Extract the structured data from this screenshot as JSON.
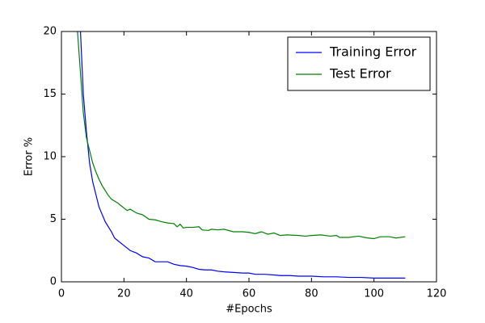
{
  "chart_data": {
    "type": "line",
    "xlabel": "#Epochs",
    "ylabel": "Error %",
    "xlim": [
      0,
      120
    ],
    "xticks": [
      0,
      20,
      40,
      60,
      80,
      100,
      120
    ],
    "ylim": [
      0,
      20
    ],
    "yticks": [
      0,
      5,
      10,
      15,
      20
    ],
    "legend": "upper right",
    "series": [
      {
        "name": "Training Error",
        "color": "#0000ff",
        "x": [
          6,
          7,
          8,
          9,
          10,
          11,
          12,
          13,
          14,
          15,
          16,
          17,
          18,
          20,
          22,
          24,
          26,
          28,
          30,
          32,
          34,
          36,
          38,
          40,
          42,
          44,
          46,
          48,
          50,
          52,
          55,
          58,
          60,
          62,
          65,
          68,
          70,
          73,
          76,
          80,
          84,
          88,
          92,
          96,
          100,
          104,
          108,
          110
        ],
        "values": [
          20.5,
          15,
          12,
          9.5,
          8,
          7,
          6,
          5.4,
          4.8,
          4.4,
          4,
          3.5,
          3.3,
          2.9,
          2.5,
          2.3,
          2.0,
          1.9,
          1.6,
          1.6,
          1.6,
          1.4,
          1.3,
          1.25,
          1.15,
          1.0,
          0.95,
          0.95,
          0.85,
          0.8,
          0.75,
          0.7,
          0.7,
          0.6,
          0.6,
          0.55,
          0.5,
          0.5,
          0.45,
          0.45,
          0.4,
          0.4,
          0.35,
          0.35,
          0.3,
          0.3,
          0.3,
          0.3
        ]
      },
      {
        "name": "Test Error",
        "color": "#008000",
        "x": [
          5,
          6,
          7,
          8,
          9,
          10,
          11,
          12,
          13,
          14,
          15,
          16,
          18,
          20,
          21,
          22,
          24,
          26,
          28,
          30,
          32,
          34,
          36,
          37,
          38,
          39,
          40,
          42,
          44,
          45,
          47,
          48,
          50,
          52,
          55,
          58,
          60,
          62,
          64,
          66,
          68,
          70,
          72,
          76,
          78,
          80,
          83,
          86,
          88,
          89,
          92,
          95,
          98,
          100,
          102,
          105,
          107,
          110
        ],
        "values": [
          20.5,
          17,
          13.5,
          11.5,
          10.5,
          9.5,
          8.8,
          8.2,
          7.7,
          7.3,
          6.9,
          6.6,
          6.3,
          5.9,
          5.7,
          5.8,
          5.5,
          5.35,
          5.0,
          4.95,
          4.8,
          4.7,
          4.65,
          4.4,
          4.6,
          4.3,
          4.35,
          4.35,
          4.4,
          4.15,
          4.1,
          4.2,
          4.15,
          4.2,
          4.0,
          4.0,
          3.95,
          3.85,
          4.0,
          3.8,
          3.9,
          3.7,
          3.75,
          3.7,
          3.65,
          3.7,
          3.75,
          3.65,
          3.7,
          3.55,
          3.55,
          3.65,
          3.5,
          3.45,
          3.6,
          3.6,
          3.5,
          3.6
        ]
      }
    ]
  }
}
